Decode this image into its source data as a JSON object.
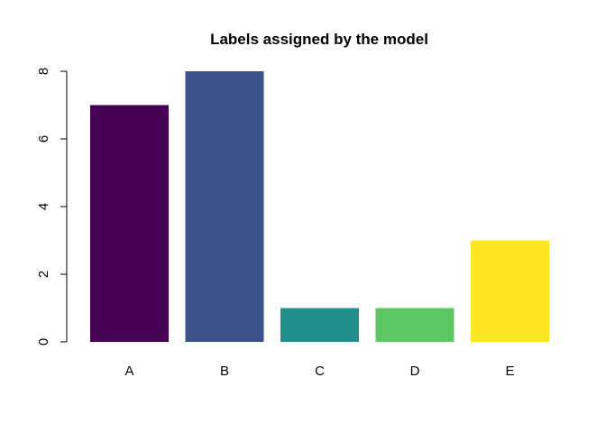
{
  "chart_data": {
    "type": "bar",
    "title": "Labels assigned by the model",
    "xlabel": "",
    "ylabel": "",
    "categories": [
      "A",
      "B",
      "C",
      "D",
      "E"
    ],
    "values": [
      7,
      8,
      1,
      1,
      3
    ],
    "colors": [
      "#440154",
      "#3B528B",
      "#21908C",
      "#5DC863",
      "#FDE725"
    ],
    "ylim": [
      0,
      8
    ],
    "yticks": [
      0,
      2,
      4,
      6,
      8
    ],
    "ytick_labels": [
      "0",
      "2",
      "4",
      "6",
      "8"
    ],
    "grid": false,
    "legend": "none"
  }
}
